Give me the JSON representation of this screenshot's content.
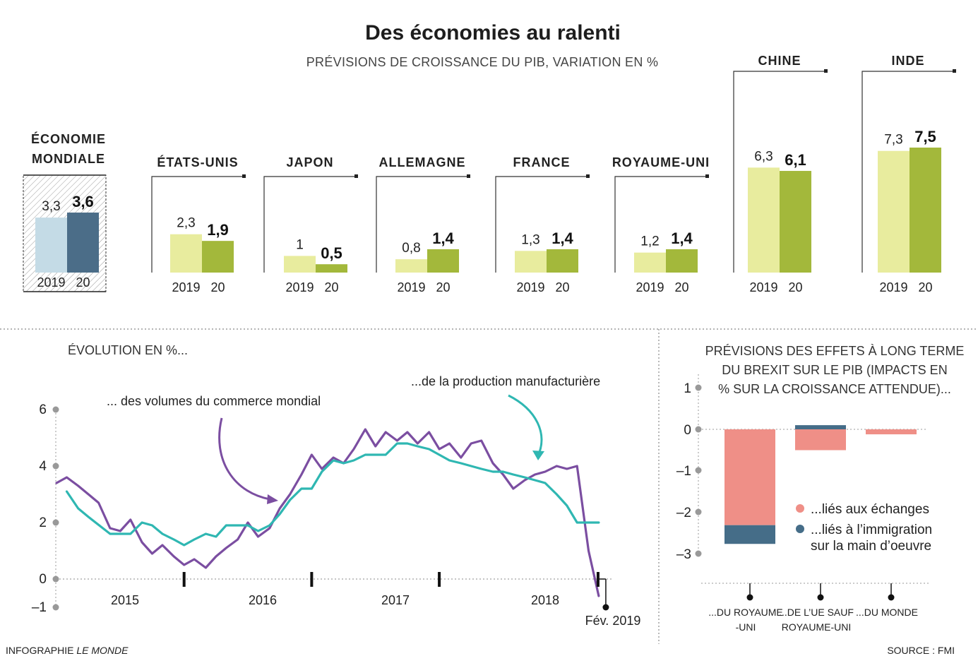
{
  "header": {
    "title": "Des économies au ralenti",
    "subtitle": "PRÉVISIONS DE CROISSANCE DU PIB, VARIATION EN %"
  },
  "chart_data": [
    {
      "type": "bar",
      "title": "PRÉVISIONS DE CROISSANCE DU PIB, VARIATION EN %",
      "year_labels": [
        "2019",
        "20"
      ],
      "colors": {
        "y2019": "#e8ec9e",
        "y2020": "#a3b83b",
        "world2019": "#c4dbe6",
        "world2020": "#4b6d88"
      },
      "groups": [
        {
          "name": "ÉCONOMIE MONDIALE",
          "name_lines": [
            "ÉCONOMIE",
            "MONDIALE"
          ],
          "values": [
            3.3,
            3.6
          ],
          "labels": [
            "3,3",
            "3,6"
          ]
        },
        {
          "name": "ÉTATS-UNIS",
          "values": [
            2.3,
            1.9
          ],
          "labels": [
            "2,3",
            "1,9"
          ]
        },
        {
          "name": "JAPON",
          "values": [
            1,
            0.5
          ],
          "labels": [
            "1",
            "0,5"
          ]
        },
        {
          "name": "ALLEMAGNE",
          "values": [
            0.8,
            1.4
          ],
          "labels": [
            "0,8",
            "1,4"
          ]
        },
        {
          "name": "FRANCE",
          "values": [
            1.3,
            1.4
          ],
          "labels": [
            "1,3",
            "1,4"
          ]
        },
        {
          "name": "ROYAUME-UNI",
          "values": [
            1.2,
            1.4
          ],
          "labels": [
            "1,2",
            "1,4"
          ]
        },
        {
          "name": "CHINE",
          "values": [
            6.3,
            6.1
          ],
          "labels": [
            "6,3",
            "6,1"
          ]
        },
        {
          "name": "INDE",
          "values": [
            7.3,
            7.5
          ],
          "labels": [
            "7,3",
            "7,5"
          ]
        }
      ]
    },
    {
      "type": "line",
      "title": "ÉVOLUTION EN %...",
      "ylim": [
        -1,
        6
      ],
      "yticks": [
        6,
        4,
        2,
        0,
        -1
      ],
      "ytick_labels": [
        "6",
        "4",
        "2",
        "0",
        "–1"
      ],
      "xlim": [
        2014.75,
        2019.1
      ],
      "year_labels": [
        {
          "label": "2015",
          "x": 2015.25
        },
        {
          "label": "2016",
          "x": 2016.25
        },
        {
          "label": "2017",
          "x": 2017.25
        },
        {
          "label": "2018",
          "x": 2018.25
        }
      ],
      "year_boundaries": [
        2015.75,
        2016.25,
        2016.75,
        2017.25,
        2017.75,
        2018.25
      ],
      "end_label": "Fév. 2019",
      "end_x": 2019.0,
      "series": [
        {
          "name": "... des volumes du commerce mondial",
          "color": "#7b4ea1",
          "x": [
            2014.75,
            2014.83,
            2014.92,
            2015.0,
            2015.08,
            2015.17,
            2015.25,
            2015.33,
            2015.42,
            2015.5,
            2015.58,
            2015.67,
            2015.75,
            2015.83,
            2015.92,
            2016.0,
            2016.08,
            2016.17,
            2016.25,
            2016.33,
            2016.42,
            2016.5,
            2016.58,
            2016.67,
            2016.75,
            2016.83,
            2016.92,
            2017.0,
            2017.08,
            2017.17,
            2017.25,
            2017.33,
            2017.42,
            2017.5,
            2017.58,
            2017.67,
            2017.75,
            2017.83,
            2017.92,
            2018.0,
            2018.08,
            2018.17,
            2018.25,
            2018.33,
            2018.42,
            2018.5,
            2018.58,
            2018.67,
            2018.75,
            2018.83,
            2018.92,
            2019.0
          ],
          "y": [
            3.4,
            3.6,
            3.3,
            3.0,
            2.7,
            1.8,
            1.7,
            2.1,
            1.3,
            0.9,
            1.2,
            0.8,
            0.5,
            0.7,
            0.4,
            0.8,
            1.1,
            1.4,
            2.0,
            1.5,
            1.8,
            2.5,
            3.0,
            3.7,
            4.4,
            3.9,
            4.3,
            4.1,
            4.6,
            5.3,
            4.7,
            5.2,
            4.9,
            5.2,
            4.8,
            5.2,
            4.6,
            4.8,
            4.3,
            4.8,
            4.9,
            4.1,
            3.7,
            3.2,
            3.5,
            3.7,
            3.8,
            4.0,
            3.9,
            4.0,
            1.0,
            -0.6
          ]
        },
        {
          "name": "...de la production manufacturière",
          "color": "#2fb7b2",
          "x": [
            2014.83,
            2014.92,
            2015.0,
            2015.17,
            2015.25,
            2015.33,
            2015.42,
            2015.5,
            2015.58,
            2015.67,
            2015.75,
            2015.83,
            2015.92,
            2016.0,
            2016.08,
            2016.17,
            2016.25,
            2016.33,
            2016.42,
            2016.5,
            2016.58,
            2016.67,
            2016.75,
            2016.83,
            2016.92,
            2017.0,
            2017.08,
            2017.17,
            2017.25,
            2017.33,
            2017.42,
            2017.5,
            2017.58,
            2017.67,
            2017.75,
            2017.83,
            2017.92,
            2018.0,
            2018.08,
            2018.17,
            2018.25,
            2018.33,
            2018.42,
            2018.5,
            2018.58,
            2018.67,
            2018.75,
            2018.83,
            2018.92,
            2019.0
          ],
          "y": [
            3.1,
            2.5,
            2.2,
            1.6,
            1.6,
            1.6,
            2.0,
            1.9,
            1.6,
            1.4,
            1.2,
            1.4,
            1.6,
            1.5,
            1.9,
            1.9,
            1.9,
            1.7,
            1.9,
            2.3,
            2.8,
            3.2,
            3.2,
            3.8,
            4.2,
            4.1,
            4.2,
            4.4,
            4.4,
            4.4,
            4.8,
            4.8,
            4.7,
            4.6,
            4.4,
            4.2,
            4.1,
            4.0,
            3.9,
            3.8,
            3.8,
            3.7,
            3.6,
            3.5,
            3.4,
            3.0,
            2.6,
            2.0,
            2.0,
            2.0
          ]
        }
      ]
    },
    {
      "type": "bar",
      "stacked": true,
      "title": "PRÉVISIONS DES EFFETS À LONG TERME DU BREXIT SUR LE PIB (IMPACTS EN % SUR LA CROISSANCE ATTENDUE)...",
      "title_lines": [
        "PRÉVISIONS DES EFFETS À LONG TERME",
        "DU BREXIT SUR LE PIB (IMPACTS  EN",
        "% SUR LA CROISSANCE ATTENDUE)..."
      ],
      "ylim": [
        -3,
        1
      ],
      "yticks": [
        1,
        0,
        -1,
        -2,
        -3
      ],
      "ytick_labels": [
        "1",
        "0",
        "–1",
        "–2",
        "–3"
      ],
      "categories": [
        {
          "lines": [
            "...DU ROYAUME",
            "-UNI"
          ]
        },
        {
          "lines": [
            "...DE L’UE SAUF",
            "ROYAUME-UNI"
          ]
        },
        {
          "lines": [
            "...DU MONDE"
          ]
        }
      ],
      "series": [
        {
          "name": "...liés aux échanges",
          "color": "#ef8f87",
          "values": [
            -2.3,
            -0.5,
            -0.12
          ]
        },
        {
          "name": "...liés à l’immigration sur la main d’oeuvre",
          "name_lines": [
            "...liés à l’immigration",
            "sur la main d’oeuvre"
          ],
          "color": "#456d88",
          "values": [
            -0.45,
            0.1,
            0
          ]
        }
      ]
    }
  ],
  "footer": {
    "credit_prefix": "INFOGRAPHIE ",
    "credit_italic": "LE MONDE",
    "source": "SOURCE : FMI"
  }
}
